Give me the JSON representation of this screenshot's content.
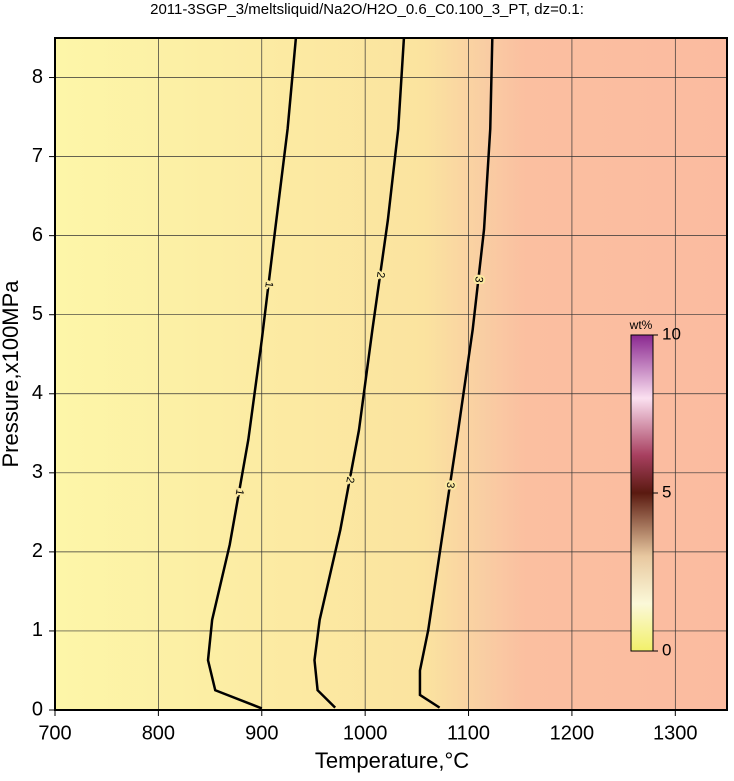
{
  "chart_data": {
    "type": "contour",
    "title": "2011-3SGP_3/meltsliquid/Na2O/H2O_0.6_C0.100_3_PT, dz=0.1:",
    "x_label": "Temperature,°C",
    "y_label": "Pressure,x100MPa",
    "xlim": [
      700,
      1350
    ],
    "xticks": [
      700,
      800,
      900,
      1000,
      1100,
      1200,
      1300
    ],
    "ylim": [
      0,
      8.5
    ],
    "yticks": [
      0,
      1,
      2,
      3,
      4,
      5,
      6,
      7,
      8
    ],
    "grid": true,
    "contours": [
      {
        "level": 1,
        "x": [
          900,
          855,
          848,
          852,
          869,
          887,
          900,
          913,
          925,
          933
        ],
        "y": [
          0.02,
          0.25,
          0.63,
          1.14,
          2.09,
          3.42,
          4.68,
          6.08,
          7.35,
          8.5
        ]
      },
      {
        "level": 2,
        "x": [
          971,
          954,
          951,
          956,
          976,
          994,
          1007,
          1022,
          1032,
          1037.5
        ],
        "y": [
          0.03,
          0.25,
          0.63,
          1.14,
          2.28,
          3.54,
          4.81,
          6.2,
          7.35,
          8.5
        ]
      },
      {
        "level": 3,
        "x": [
          1072,
          1053,
          1053,
          1061,
          1074,
          1090,
          1104,
          1115,
          1121,
          1123
        ],
        "y": [
          0.03,
          0.19,
          0.5,
          1.01,
          2.15,
          3.54,
          4.81,
          6.08,
          7.35,
          8.5
        ]
      }
    ],
    "colorbar": {
      "label": "wt%",
      "lim": [
        0,
        10
      ],
      "ticks": [
        0,
        5,
        10
      ]
    }
  }
}
